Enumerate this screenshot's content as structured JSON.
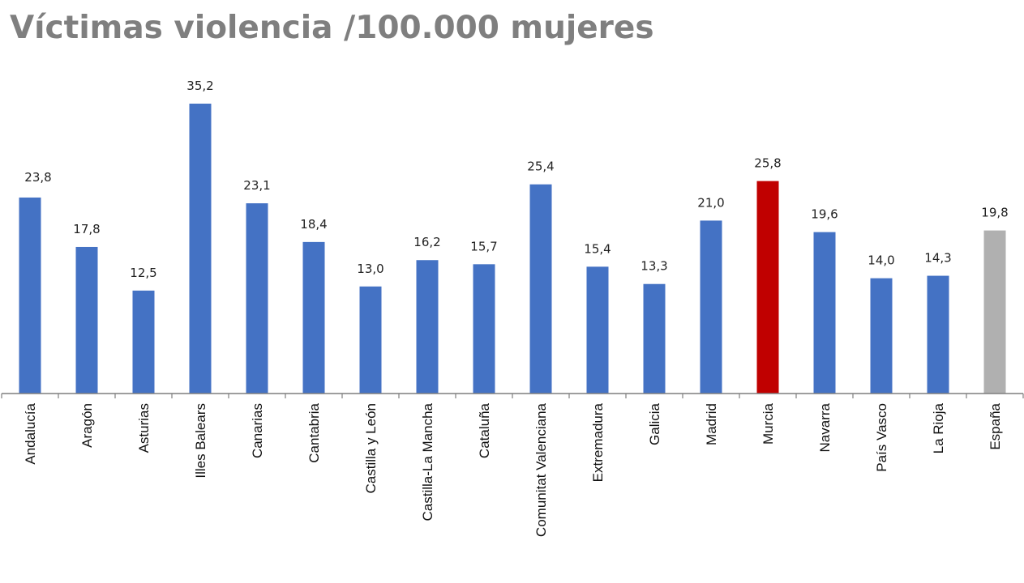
{
  "chart_data": {
    "type": "bar",
    "title": "Víctimas violencia /100.000 mujeres",
    "categories": [
      "Andalucía",
      "Aragón",
      "Asturias",
      "Illes Balears",
      "Canarias",
      "Cantabria",
      "Castilla y León",
      "Castilla-La Mancha",
      "Cataluña",
      "Comunitat Valenciana",
      "Extremadura",
      "Galicia",
      "Madrid",
      "Murcia",
      "Navarra",
      "País Vasco",
      "La Rioja",
      "España"
    ],
    "values": [
      23.8,
      17.8,
      12.5,
      35.2,
      23.1,
      18.4,
      13.0,
      16.2,
      15.7,
      25.4,
      15.4,
      13.3,
      21.0,
      25.8,
      19.6,
      14.0,
      14.3,
      19.8
    ],
    "value_labels": [
      "23,8",
      "17,8",
      "12,5",
      "35,2",
      "23,1",
      "18,4",
      "13,0",
      "16,2",
      "15,7",
      "25,4",
      "15,4",
      "13,3",
      "21,0",
      "25,8",
      "19,6",
      "14,0",
      "14,3",
      "19,8"
    ],
    "colors": {
      "default": "#4472c4",
      "highlight": "#c00000",
      "total": "#b0b0b0"
    },
    "highlight_category": "Murcia",
    "total_category": "España",
    "ylim": [
      0,
      35.2
    ],
    "grid": false,
    "legend": "none"
  }
}
